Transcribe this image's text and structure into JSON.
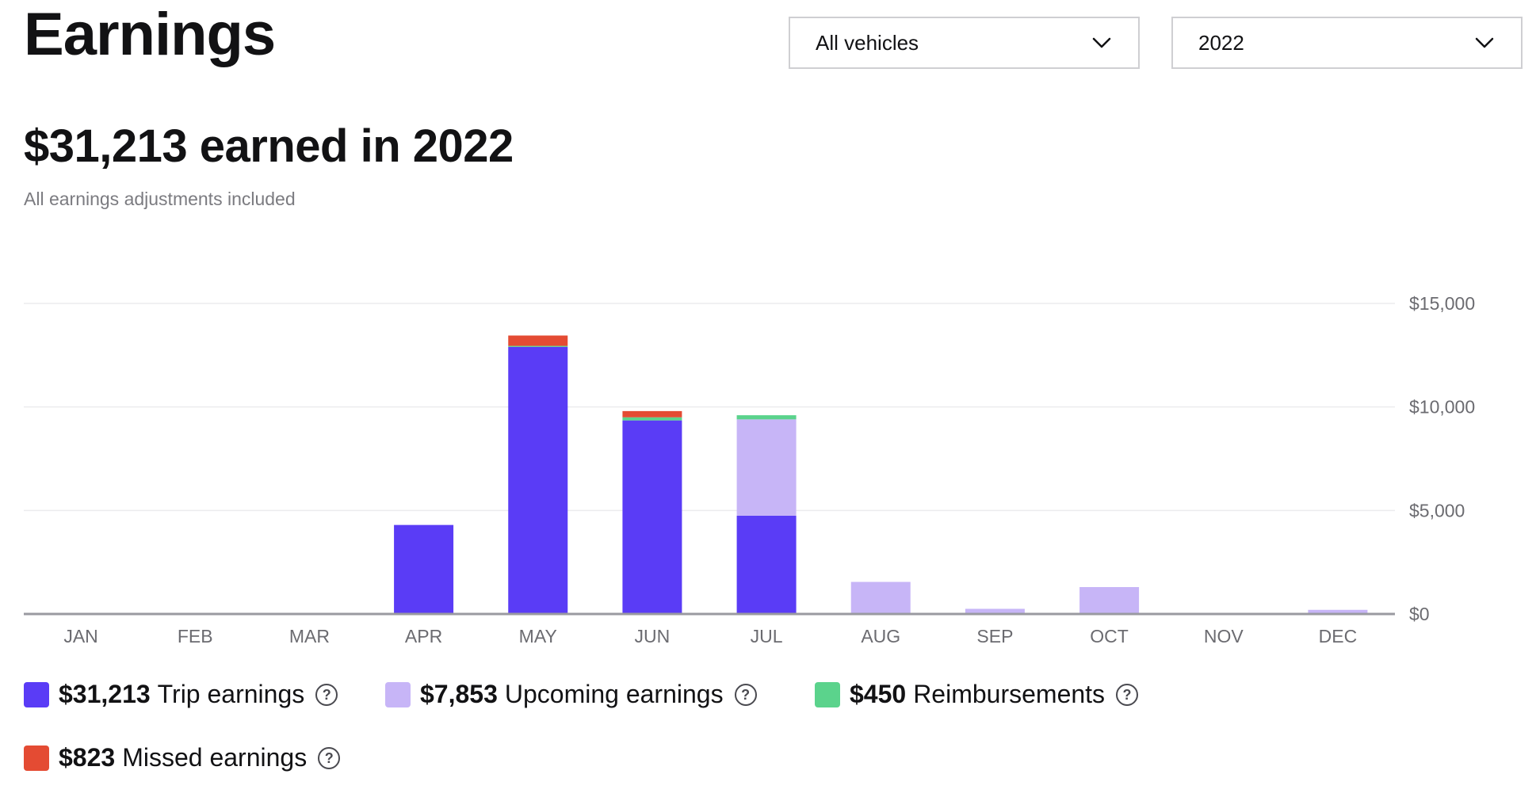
{
  "header": {
    "title": "Earnings",
    "vehicle_filter": {
      "selected": "All vehicles",
      "icon": "chevron-down-icon"
    },
    "year_filter": {
      "selected": "2022",
      "icon": "chevron-down-icon"
    }
  },
  "summary": {
    "heading": "$31,213 earned in 2022",
    "note": "All earnings adjustments included"
  },
  "colors": {
    "trip": "#5a3cf6",
    "upcoming": "#c7b5f7",
    "reimbursements": "#5bd38c",
    "missed": "#e44b33",
    "grid": "#ececee",
    "axis": "#9a9aa0",
    "tick_text": "#6b6b70"
  },
  "legend": [
    {
      "key": "trip",
      "value": "$31,213",
      "label": "Trip earnings",
      "icon": "help-circle-icon"
    },
    {
      "key": "upcoming",
      "value": "$7,853",
      "label": "Upcoming earnings",
      "icon": "help-circle-icon"
    },
    {
      "key": "reimbursements",
      "value": "$450",
      "label": "Reimbursements",
      "icon": "help-circle-icon"
    },
    {
      "key": "missed",
      "value": "$823",
      "label": "Missed earnings",
      "icon": "help-circle-icon"
    }
  ],
  "chart_data": {
    "type": "bar",
    "stacked": true,
    "categories": [
      "JAN",
      "FEB",
      "MAR",
      "APR",
      "MAY",
      "JUN",
      "JUL",
      "AUG",
      "SEP",
      "OCT",
      "NOV",
      "DEC"
    ],
    "series": [
      {
        "key": "trip",
        "name": "Trip earnings",
        "values": [
          0,
          0,
          0,
          4300,
          12900,
          9350,
          4750,
          0,
          0,
          0,
          0,
          0
        ]
      },
      {
        "key": "upcoming",
        "name": "Upcoming earnings",
        "values": [
          0,
          0,
          0,
          0,
          0,
          0,
          4650,
          1550,
          250,
          1300,
          0,
          200
        ]
      },
      {
        "key": "reimbursements",
        "name": "Reimbursements",
        "values": [
          0,
          0,
          0,
          0,
          50,
          150,
          200,
          0,
          0,
          0,
          0,
          0
        ]
      },
      {
        "key": "missed",
        "name": "Missed earnings",
        "values": [
          0,
          0,
          0,
          0,
          500,
          300,
          0,
          0,
          0,
          0,
          0,
          0
        ]
      }
    ],
    "yticks": [
      "$0",
      "$5,000",
      "$10,000",
      "$15,000"
    ],
    "ytick_values": [
      0,
      5000,
      10000,
      15000
    ],
    "ylim": [
      0,
      15000
    ],
    "axis_position": "right",
    "grid": true,
    "legend_position": "bottom"
  }
}
